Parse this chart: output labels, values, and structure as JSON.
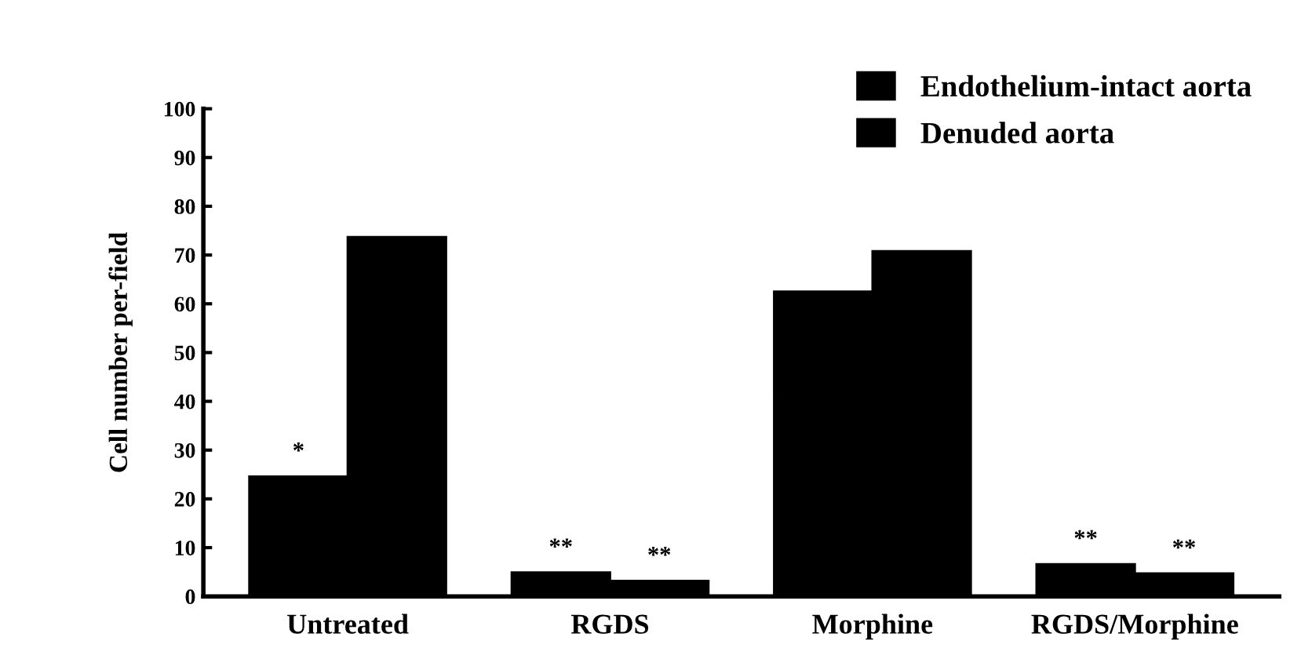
{
  "chart_data": {
    "type": "bar",
    "ylabel": "Cell number per-field",
    "categories": [
      "Untreated",
      "RGDS",
      "Morphine",
      "RGDS/Morphine"
    ],
    "series": [
      {
        "name": "Endothelium-intact aorta",
        "color": "#000000",
        "values": [
          24.6,
          4.9,
          62.5,
          6.6
        ],
        "value_labels": [
          "*",
          "**",
          null,
          "**"
        ]
      },
      {
        "name": "Denuded aorta",
        "color": "#000000",
        "values": [
          73.7,
          3.2,
          70.8,
          4.7
        ],
        "value_labels": [
          null,
          "**",
          null,
          "**"
        ]
      }
    ],
    "ylim": [
      0,
      100
    ],
    "yticks": [
      0,
      10,
      20,
      30,
      40,
      50,
      60,
      70,
      80,
      90,
      100
    ],
    "grid": false,
    "legend": "top right"
  }
}
